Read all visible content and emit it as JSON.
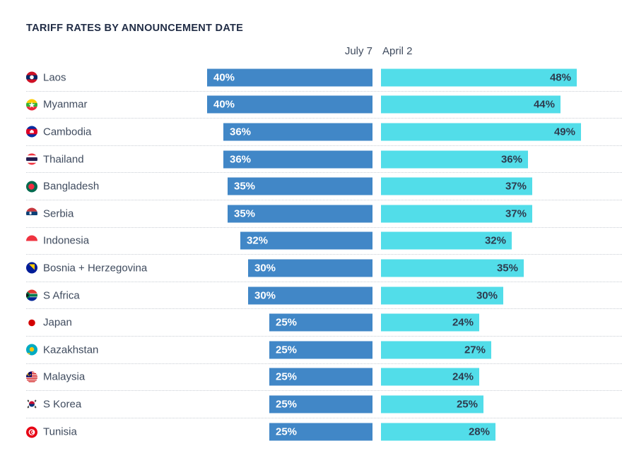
{
  "title": "TARIFF RATES BY ANNOUNCEMENT DATE",
  "columns": {
    "july_label": "July 7",
    "april_label": "April 2"
  },
  "colors": {
    "july_bar": "#4187c7",
    "april_bar": "#52dde9",
    "title_text": "#212d46",
    "country_text": "#3f4b5e",
    "july_bar_label": "#ffffff",
    "april_bar_label": "#2e3b4e",
    "separator": "#c8cdd4"
  },
  "chart_data": {
    "type": "bar",
    "orientation": "horizontal",
    "title": "TARIFF RATES BY ANNOUNCEMENT DATE",
    "unit": "%",
    "categories": [
      "Laos",
      "Myanmar",
      "Cambodia",
      "Thailand",
      "Bangladesh",
      "Serbia",
      "Indonesia",
      "Bosnia + Herzegovina",
      "S Africa",
      "Japan",
      "Kazakhstan",
      "Malaysia",
      "S Korea",
      "Tunisia"
    ],
    "series": [
      {
        "name": "July 7",
        "values": [
          40,
          40,
          36,
          36,
          35,
          35,
          32,
          30,
          30,
          25,
          25,
          25,
          25,
          25
        ]
      },
      {
        "name": "April 2",
        "values": [
          48,
          44,
          49,
          36,
          37,
          37,
          32,
          35,
          30,
          24,
          27,
          24,
          25,
          28
        ]
      }
    ],
    "value_labels_shown": true,
    "grid": false,
    "legend_position": "column-headers-top"
  },
  "rows": [
    {
      "country": "Laos",
      "flag": "laos",
      "july_label": "40%",
      "april_label": "48%",
      "july_value": 40,
      "april_value": 48
    },
    {
      "country": "Myanmar",
      "flag": "myanmar",
      "july_label": "40%",
      "april_label": "44%",
      "july_value": 40,
      "april_value": 44
    },
    {
      "country": "Cambodia",
      "flag": "cambodia",
      "july_label": "36%",
      "april_label": "49%",
      "july_value": 36,
      "april_value": 49
    },
    {
      "country": "Thailand",
      "flag": "thailand",
      "july_label": "36%",
      "april_label": "36%",
      "july_value": 36,
      "april_value": 36
    },
    {
      "country": "Bangladesh",
      "flag": "bangladesh",
      "july_label": "35%",
      "april_label": "37%",
      "july_value": 35,
      "april_value": 37
    },
    {
      "country": "Serbia",
      "flag": "serbia",
      "july_label": "35%",
      "april_label": "37%",
      "july_value": 35,
      "april_value": 37
    },
    {
      "country": "Indonesia",
      "flag": "indonesia",
      "july_label": "32%",
      "april_label": "32%",
      "july_value": 32,
      "april_value": 32
    },
    {
      "country": "Bosnia + Herzegovina",
      "flag": "bosnia",
      "july_label": "30%",
      "april_label": "35%",
      "july_value": 30,
      "april_value": 35
    },
    {
      "country": "S Africa",
      "flag": "s-africa",
      "july_label": "30%",
      "april_label": "30%",
      "july_value": 30,
      "april_value": 30
    },
    {
      "country": "Japan",
      "flag": "japan",
      "july_label": "25%",
      "april_label": "24%",
      "july_value": 25,
      "april_value": 24
    },
    {
      "country": "Kazakhstan",
      "flag": "kazakhstan",
      "july_label": "25%",
      "april_label": "27%",
      "july_value": 25,
      "april_value": 27
    },
    {
      "country": "Malaysia",
      "flag": "malaysia",
      "july_label": "25%",
      "april_label": "24%",
      "july_value": 25,
      "april_value": 24
    },
    {
      "country": "S Korea",
      "flag": "s-korea",
      "july_label": "25%",
      "april_label": "25%",
      "july_value": 25,
      "april_value": 25
    },
    {
      "country": "Tunisia",
      "flag": "tunisia",
      "july_label": "25%",
      "april_label": "28%",
      "july_value": 25,
      "april_value": 28
    }
  ]
}
